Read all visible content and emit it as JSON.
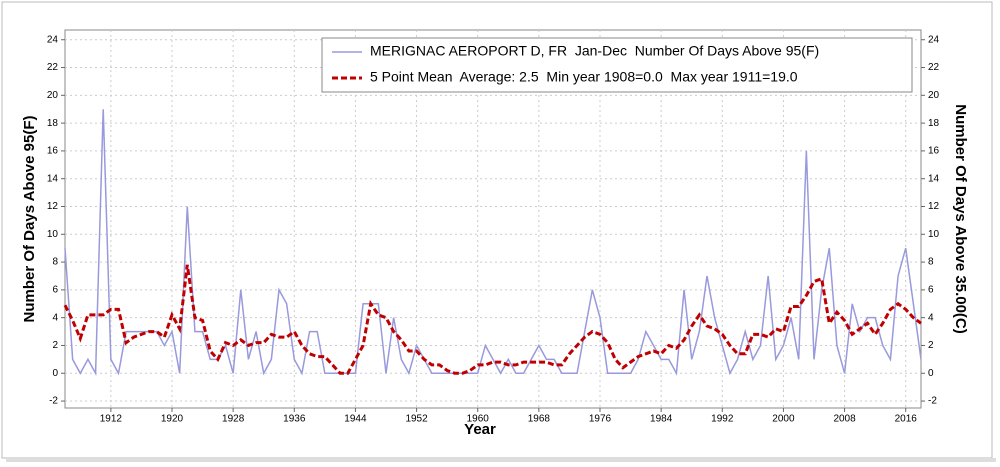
{
  "chart_data": {
    "type": "line",
    "xlabel": "Year",
    "ylabel": "Number Of Days Above 95(F)",
    "y2label": "Number Of Days Above 35.00(C)",
    "x": [
      1906,
      1907,
      1908,
      1909,
      1910,
      1911,
      1912,
      1913,
      1914,
      1915,
      1916,
      1917,
      1918,
      1919,
      1920,
      1921,
      1922,
      1923,
      1924,
      1925,
      1926,
      1927,
      1928,
      1929,
      1930,
      1931,
      1932,
      1933,
      1934,
      1935,
      1936,
      1937,
      1938,
      1939,
      1940,
      1941,
      1942,
      1943,
      1944,
      1945,
      1946,
      1947,
      1948,
      1949,
      1950,
      1951,
      1952,
      1953,
      1954,
      1955,
      1956,
      1957,
      1958,
      1959,
      1960,
      1961,
      1962,
      1963,
      1964,
      1965,
      1966,
      1967,
      1968,
      1969,
      1970,
      1971,
      1972,
      1973,
      1974,
      1975,
      1976,
      1977,
      1978,
      1979,
      1980,
      1981,
      1982,
      1983,
      1984,
      1985,
      1986,
      1987,
      1988,
      1989,
      1990,
      1991,
      1992,
      1993,
      1994,
      1995,
      1996,
      1997,
      1998,
      1999,
      2000,
      2001,
      2002,
      2003,
      2004,
      2005,
      2006,
      2007,
      2008,
      2009,
      2010,
      2011,
      2012,
      2013,
      2014,
      2015,
      2016,
      2017,
      2018
    ],
    "series": [
      {
        "name": "MERIGNAC AEROPORT D, FR  Jan-Dec  Number Of Days Above 95(F)",
        "color": "#9999dd",
        "style": "solid",
        "values": [
          9,
          1,
          0,
          1,
          0,
          19,
          1,
          0,
          3,
          3,
          3,
          3,
          3,
          2,
          3,
          0,
          12,
          3,
          3,
          1,
          1,
          2,
          0,
          6,
          1,
          3,
          0,
          1,
          6,
          5,
          1,
          0,
          3,
          3,
          0,
          0,
          0,
          0,
          0,
          5,
          5,
          5,
          0,
          4,
          1,
          0,
          2,
          1,
          0,
          0,
          0,
          0,
          0,
          0,
          0,
          2,
          1,
          0,
          1,
          0,
          0,
          1,
          2,
          1,
          1,
          0,
          0,
          0,
          3,
          6,
          4,
          0,
          0,
          0,
          0,
          1,
          3,
          2,
          1,
          1,
          0,
          6,
          1,
          3,
          7,
          4,
          2,
          0,
          1,
          3,
          1,
          2,
          7,
          1,
          2,
          4,
          1,
          16,
          1,
          6,
          9,
          2,
          0,
          5,
          3,
          4,
          4,
          2,
          1,
          7,
          9,
          5,
          1
        ]
      },
      {
        "name": "5 Point Mean  Average: 2.5  Min year 1908=0.0  Max year 1911=19.0",
        "color": "#c00000",
        "style": "dashed",
        "values": [
          4.9,
          3.8,
          2.5,
          4.2,
          4.2,
          4.2,
          4.6,
          4.6,
          2.2,
          2.6,
          2.8,
          3.0,
          3.0,
          2.6,
          4.2,
          3.2,
          7.8,
          4.0,
          3.8,
          1.6,
          1.0,
          2.2,
          2.0,
          2.4,
          2.0,
          2.2,
          2.2,
          2.8,
          2.6,
          2.6,
          3.0,
          2.0,
          1.4,
          1.2,
          1.2,
          0.6,
          0.0,
          0.0,
          1.0,
          2.0,
          5.0,
          4.2,
          4.0,
          3.0,
          2.4,
          1.6,
          1.6,
          1.0,
          0.6,
          0.6,
          0.2,
          0.0,
          0.0,
          0.2,
          0.6,
          0.6,
          0.8,
          0.8,
          0.6,
          0.6,
          0.8,
          0.8,
          0.8,
          0.8,
          0.6,
          0.6,
          1.4,
          2.0,
          2.6,
          3.0,
          2.8,
          2.2,
          1.0,
          0.4,
          0.8,
          1.2,
          1.4,
          1.6,
          1.4,
          2.0,
          1.8,
          2.4,
          3.4,
          4.2,
          3.4,
          3.2,
          2.8,
          2.0,
          1.4,
          1.4,
          2.8,
          2.8,
          2.6,
          3.2,
          3.0,
          4.8,
          4.8,
          5.6,
          6.6,
          6.8,
          3.6,
          4.4,
          3.8,
          2.8,
          3.2,
          3.6,
          2.8,
          3.6,
          4.6,
          5.0,
          4.6,
          4.0,
          3.6
        ]
      }
    ],
    "xlim": [
      1906,
      2018
    ],
    "xticks": [
      1912,
      1920,
      1928,
      1936,
      1944,
      1952,
      1960,
      1968,
      1976,
      1984,
      1992,
      2000,
      2008,
      2016
    ],
    "ylim": [
      -2.5,
      24.7
    ],
    "yticks": [
      -2,
      0,
      2,
      4,
      6,
      8,
      10,
      12,
      14,
      16,
      18,
      20,
      22,
      24
    ],
    "y2lim": [
      -2.5,
      24.7
    ],
    "y2ticks": [
      -2,
      0,
      2,
      4,
      6,
      8,
      10,
      12,
      14,
      16,
      18,
      20,
      22,
      24
    ],
    "grid": true,
    "legend": "top-right"
  }
}
